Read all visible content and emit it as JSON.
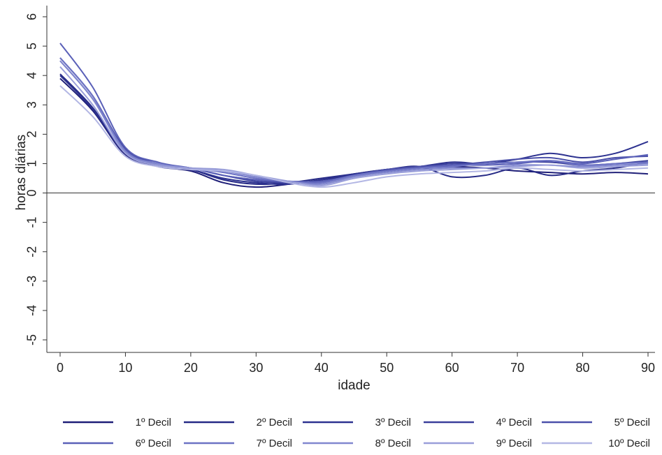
{
  "chart_data": {
    "type": "line",
    "xlabel": "idade",
    "ylabel": "horas diárias",
    "xlim": [
      0,
      90
    ],
    "ylim": [
      -5,
      6
    ],
    "xticks": [
      "0",
      "10",
      "20",
      "30",
      "40",
      "50",
      "60",
      "70",
      "80",
      "90"
    ],
    "yticks": [
      "-5",
      "-4",
      "-3",
      "-2",
      "-1",
      "0",
      "1",
      "2",
      "3",
      "4",
      "5",
      "6"
    ],
    "zero_line": true,
    "grid": false,
    "legend_position": "bottom",
    "series": [
      {
        "name": "1º Decil",
        "color": "#1f1f78",
        "points": [
          [
            0,
            3.9
          ],
          [
            5,
            2.8
          ],
          [
            10,
            1.3
          ],
          [
            15,
            0.9
          ],
          [
            20,
            0.75
          ],
          [
            25,
            0.35
          ],
          [
            30,
            0.2
          ],
          [
            35,
            0.3
          ],
          [
            40,
            0.45
          ],
          [
            45,
            0.6
          ],
          [
            50,
            0.75
          ],
          [
            55,
            0.85
          ],
          [
            60,
            0.9
          ],
          [
            65,
            0.85
          ],
          [
            70,
            0.75
          ],
          [
            75,
            0.7
          ],
          [
            80,
            0.65
          ],
          [
            85,
            0.7
          ],
          [
            90,
            0.65
          ]
        ]
      },
      {
        "name": "2º Decil",
        "color": "#262a86",
        "points": [
          [
            0,
            4.05
          ],
          [
            5,
            2.9
          ],
          [
            10,
            1.35
          ],
          [
            15,
            0.95
          ],
          [
            20,
            0.8
          ],
          [
            25,
            0.45
          ],
          [
            30,
            0.3
          ],
          [
            35,
            0.35
          ],
          [
            40,
            0.5
          ],
          [
            45,
            0.65
          ],
          [
            50,
            0.8
          ],
          [
            55,
            0.9
          ],
          [
            60,
            0.55
          ],
          [
            65,
            0.6
          ],
          [
            70,
            0.85
          ],
          [
            75,
            0.6
          ],
          [
            80,
            0.75
          ],
          [
            85,
            0.85
          ],
          [
            90,
            1.05
          ]
        ]
      },
      {
        "name": "3º Decil",
        "color": "#2d3290",
        "points": [
          [
            0,
            4.0
          ],
          [
            5,
            2.85
          ],
          [
            10,
            1.35
          ],
          [
            15,
            0.95
          ],
          [
            20,
            0.8
          ],
          [
            25,
            0.5
          ],
          [
            30,
            0.35
          ],
          [
            35,
            0.3
          ],
          [
            40,
            0.45
          ],
          [
            45,
            0.65
          ],
          [
            50,
            0.8
          ],
          [
            55,
            0.9
          ],
          [
            60,
            1.05
          ],
          [
            65,
            1.0
          ],
          [
            70,
            1.15
          ],
          [
            75,
            1.35
          ],
          [
            80,
            1.2
          ],
          [
            85,
            1.35
          ],
          [
            90,
            1.75
          ]
        ]
      },
      {
        "name": "4º Decil",
        "color": "#3a3f9b",
        "points": [
          [
            0,
            4.6
          ],
          [
            5,
            3.3
          ],
          [
            10,
            1.5
          ],
          [
            15,
            1.0
          ],
          [
            20,
            0.85
          ],
          [
            25,
            0.6
          ],
          [
            30,
            0.4
          ],
          [
            35,
            0.35
          ],
          [
            40,
            0.4
          ],
          [
            45,
            0.6
          ],
          [
            50,
            0.8
          ],
          [
            55,
            0.9
          ],
          [
            60,
            1.0
          ],
          [
            65,
            1.0
          ],
          [
            70,
            1.05
          ],
          [
            75,
            1.05
          ],
          [
            80,
            0.95
          ],
          [
            85,
            1.0
          ],
          [
            90,
            1.1
          ]
        ]
      },
      {
        "name": "5º Decil",
        "color": "#4b50aa",
        "points": [
          [
            0,
            4.5
          ],
          [
            5,
            3.2
          ],
          [
            10,
            1.45
          ],
          [
            15,
            1.0
          ],
          [
            20,
            0.85
          ],
          [
            25,
            0.6
          ],
          [
            30,
            0.45
          ],
          [
            35,
            0.35
          ],
          [
            40,
            0.35
          ],
          [
            45,
            0.6
          ],
          [
            50,
            0.8
          ],
          [
            55,
            0.9
          ],
          [
            60,
            0.95
          ],
          [
            65,
            1.05
          ],
          [
            70,
            1.15
          ],
          [
            75,
            1.2
          ],
          [
            80,
            1.05
          ],
          [
            85,
            1.2
          ],
          [
            90,
            1.25
          ]
        ]
      },
      {
        "name": "6º Decil",
        "color": "#5a60b8",
        "points": [
          [
            0,
            5.1
          ],
          [
            5,
            3.6
          ],
          [
            10,
            1.55
          ],
          [
            15,
            1.05
          ],
          [
            20,
            0.85
          ],
          [
            25,
            0.6
          ],
          [
            30,
            0.45
          ],
          [
            35,
            0.4
          ],
          [
            40,
            0.4
          ],
          [
            45,
            0.6
          ],
          [
            50,
            0.75
          ],
          [
            55,
            0.85
          ],
          [
            60,
            0.95
          ],
          [
            65,
            0.95
          ],
          [
            70,
            1.0
          ],
          [
            75,
            1.1
          ],
          [
            80,
            1.0
          ],
          [
            85,
            1.15
          ],
          [
            90,
            1.3
          ]
        ]
      },
      {
        "name": "7º Decil",
        "color": "#6c72c4",
        "points": [
          [
            0,
            4.6
          ],
          [
            5,
            3.3
          ],
          [
            10,
            1.45
          ],
          [
            15,
            1.0
          ],
          [
            20,
            0.85
          ],
          [
            25,
            0.7
          ],
          [
            30,
            0.5
          ],
          [
            35,
            0.4
          ],
          [
            40,
            0.35
          ],
          [
            45,
            0.6
          ],
          [
            50,
            0.75
          ],
          [
            55,
            0.85
          ],
          [
            60,
            0.9
          ],
          [
            65,
            1.0
          ],
          [
            70,
            1.05
          ],
          [
            75,
            1.1
          ],
          [
            80,
            0.95
          ],
          [
            85,
            1.0
          ],
          [
            90,
            1.05
          ]
        ]
      },
      {
        "name": "8º Decil",
        "color": "#8187cf",
        "points": [
          [
            0,
            4.5
          ],
          [
            5,
            3.2
          ],
          [
            10,
            1.4
          ],
          [
            15,
            1.0
          ],
          [
            20,
            0.85
          ],
          [
            25,
            0.75
          ],
          [
            30,
            0.55
          ],
          [
            35,
            0.4
          ],
          [
            40,
            0.3
          ],
          [
            45,
            0.55
          ],
          [
            50,
            0.7
          ],
          [
            55,
            0.8
          ],
          [
            60,
            0.85
          ],
          [
            65,
            0.85
          ],
          [
            70,
            0.95
          ],
          [
            75,
            0.95
          ],
          [
            80,
            0.9
          ],
          [
            85,
            0.95
          ],
          [
            90,
            1.0
          ]
        ]
      },
      {
        "name": "9º Decil",
        "color": "#999ed9",
        "points": [
          [
            0,
            4.3
          ],
          [
            5,
            3.0
          ],
          [
            10,
            1.35
          ],
          [
            15,
            0.95
          ],
          [
            20,
            0.85
          ],
          [
            25,
            0.8
          ],
          [
            30,
            0.6
          ],
          [
            35,
            0.4
          ],
          [
            40,
            0.25
          ],
          [
            45,
            0.5
          ],
          [
            50,
            0.65
          ],
          [
            55,
            0.75
          ],
          [
            60,
            0.8
          ],
          [
            65,
            0.85
          ],
          [
            70,
            0.9
          ],
          [
            75,
            0.95
          ],
          [
            80,
            0.85
          ],
          [
            85,
            0.9
          ],
          [
            90,
            0.95
          ]
        ]
      },
      {
        "name": "10º Decil",
        "color": "#b3b7e4",
        "points": [
          [
            0,
            3.65
          ],
          [
            5,
            2.6
          ],
          [
            10,
            1.25
          ],
          [
            15,
            0.9
          ],
          [
            20,
            0.8
          ],
          [
            25,
            0.75
          ],
          [
            30,
            0.6
          ],
          [
            35,
            0.35
          ],
          [
            40,
            0.2
          ],
          [
            45,
            0.35
          ],
          [
            50,
            0.55
          ],
          [
            55,
            0.65
          ],
          [
            60,
            0.7
          ],
          [
            65,
            0.75
          ],
          [
            70,
            0.85
          ],
          [
            75,
            0.8
          ],
          [
            80,
            0.75
          ],
          [
            85,
            0.8
          ],
          [
            90,
            0.85
          ]
        ]
      }
    ]
  }
}
